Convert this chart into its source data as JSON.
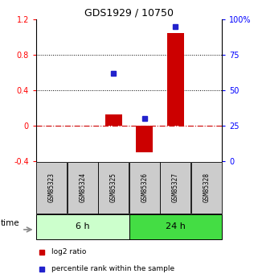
{
  "title": "GDS1929 / 10750",
  "samples": [
    "GSM85323",
    "GSM85324",
    "GSM85325",
    "GSM85326",
    "GSM85327",
    "GSM85328"
  ],
  "log2_ratio": [
    0.0,
    0.0,
    0.13,
    -0.3,
    1.05,
    0.0
  ],
  "percentile_rank": [
    null,
    null,
    62,
    30,
    95,
    null
  ],
  "groups": [
    {
      "label": "6 h",
      "indices": [
        0,
        1,
        2
      ],
      "color": "#b3ffb3"
    },
    {
      "label": "24 h",
      "indices": [
        3,
        4,
        5
      ],
      "color": "#33cc33"
    }
  ],
  "ylim_left": [
    -0.4,
    1.2
  ],
  "ylim_right": [
    0,
    100
  ],
  "yticks_left": [
    -0.4,
    0.0,
    0.4,
    0.8,
    1.2
  ],
  "ytick_labels_left": [
    "-0.4",
    "0",
    "0.4",
    "0.8",
    "1.2"
  ],
  "yticks_right": [
    0,
    25,
    50,
    75,
    100
  ],
  "ytick_labels_right": [
    "0",
    "25",
    "50",
    "75",
    "100%"
  ],
  "dotted_hlines": [
    0.4,
    0.8
  ],
  "bar_color": "#cc0000",
  "dot_color": "#2222cc",
  "zero_line_color": "#cc0000",
  "sample_box_color": "#cccccc",
  "group6h_color": "#ccffcc",
  "group24h_color": "#44dd44",
  "legend_red": "log2 ratio",
  "legend_blue": "percentile rank within the sample"
}
